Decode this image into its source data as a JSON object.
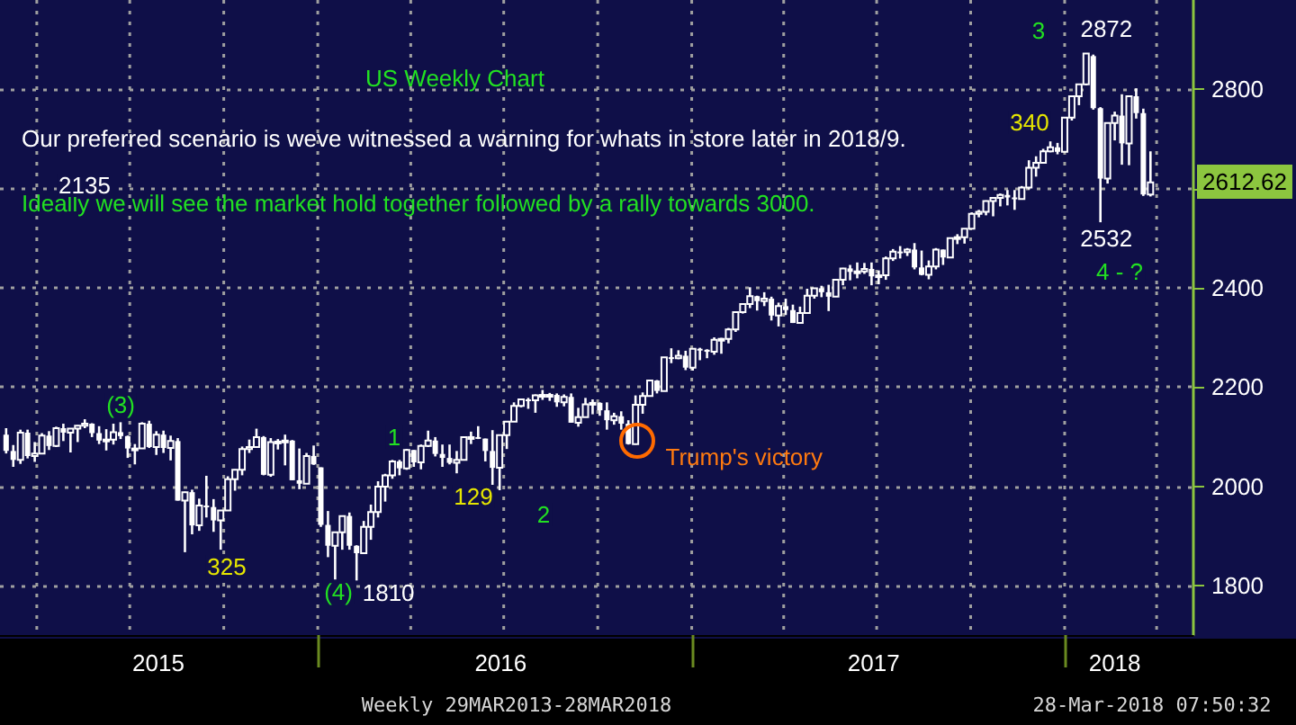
{
  "chart_data": {
    "type": "candlestick",
    "title": "US Weekly Chart",
    "color": "#ffffff",
    "grid": true,
    "xlim": [
      "2015-02-24",
      "2018-05-07"
    ],
    "ylim": [
      1700,
      2980
    ],
    "xticks": [
      {
        "value": "2015-04-01",
        "label": null
      },
      {
        "value": "2015-07-01",
        "label": null
      },
      {
        "value": "2015-07-29",
        "label": "2015"
      },
      {
        "value": "2015-10-01",
        "label": null
      },
      {
        "value": "2016-01-01",
        "label": null
      },
      {
        "value": "2016-04-01",
        "label": null
      },
      {
        "value": "2016-06-28",
        "label": "2016"
      },
      {
        "value": "2016-07-01",
        "label": null
      },
      {
        "value": "2016-10-01",
        "label": null
      },
      {
        "value": "2017-01-01",
        "label": null
      },
      {
        "value": "2017-04-01",
        "label": null
      },
      {
        "value": "2017-06-28",
        "label": "2017"
      },
      {
        "value": "2017-07-01",
        "label": null
      },
      {
        "value": "2017-10-01",
        "label": null
      },
      {
        "value": "2018-01-01",
        "label": null
      },
      {
        "value": "2018-02-19",
        "label": "2018"
      },
      {
        "value": "2018-04-01",
        "label": null
      }
    ],
    "yticks": [
      1800,
      2000,
      2200,
      2400,
      {
        "value": 2600,
        "label": null
      },
      2800
    ],
    "annotations": [
      "Our preferred scenario is weve witnessed a warning for whats in store later in 2018/9.",
      "Ideally we will see the market hold together followed by a rally towards 3000.",
      "2135",
      "(3)",
      "325",
      "(4)",
      {
        "text": "1810",
        "x": "2016-02-11",
        "y": 1810
      },
      "1",
      "129",
      "2",
      {
        "text": "Trump's victory",
        "x": "2016-11-04",
        "y": 2084
      },
      "3",
      {
        "text": "2872",
        "x": "2018-01-26",
        "y": 2872
      },
      "340",
      {
        "text": "2532",
        "x": "2018-02-09",
        "y": 2532
      },
      "4 - ?",
      "2612.62",
      "Weekly 29MAR2013-28MAR2018",
      "28-Mar-2018 07:50:32"
    ],
    "x": [
      "2015-03-02",
      "2015-03-09",
      "2015-03-16",
      "2015-03-23",
      "2015-03-30",
      "2015-04-06",
      "2015-04-13",
      "2015-04-20",
      "2015-04-27",
      "2015-05-04",
      "2015-05-11",
      "2015-05-18",
      "2015-05-25",
      "2015-06-01",
      "2015-06-08",
      "2015-06-15",
      "2015-06-22",
      "2015-06-29",
      "2015-07-06",
      "2015-07-13",
      "2015-07-20",
      "2015-07-27",
      "2015-08-03",
      "2015-08-10",
      "2015-08-17",
      "2015-08-24",
      "2015-08-31",
      "2015-09-07",
      "2015-09-14",
      "2015-09-21",
      "2015-09-28",
      "2015-10-05",
      "2015-10-12",
      "2015-10-19",
      "2015-10-26",
      "2015-11-02",
      "2015-11-09",
      "2015-11-16",
      "2015-11-23",
      "2015-11-30",
      "2015-12-07",
      "2015-12-14",
      "2015-12-21",
      "2015-12-28",
      "2016-01-04",
      "2016-01-11",
      "2016-01-18",
      "2016-01-25",
      "2016-02-01",
      "2016-02-08",
      "2016-02-15",
      "2016-02-22",
      "2016-02-29",
      "2016-03-07",
      "2016-03-14",
      "2016-03-21",
      "2016-03-28",
      "2016-04-04",
      "2016-04-11",
      "2016-04-18",
      "2016-04-25",
      "2016-05-02",
      "2016-05-09",
      "2016-05-16",
      "2016-05-23",
      "2016-05-30",
      "2016-06-06",
      "2016-06-13",
      "2016-06-20",
      "2016-06-27",
      "2016-07-04",
      "2016-07-11",
      "2016-07-18",
      "2016-07-25",
      "2016-08-01",
      "2016-08-08",
      "2016-08-15",
      "2016-08-22",
      "2016-08-29",
      "2016-09-05",
      "2016-09-12",
      "2016-09-19",
      "2016-09-26",
      "2016-10-03",
      "2016-10-10",
      "2016-10-17",
      "2016-10-24",
      "2016-10-31",
      "2016-11-07",
      "2016-11-14",
      "2016-11-21",
      "2016-11-28",
      "2016-12-05",
      "2016-12-12",
      "2016-12-19",
      "2016-12-26",
      "2017-01-02",
      "2017-01-09",
      "2017-01-16",
      "2017-01-23",
      "2017-01-30",
      "2017-02-06",
      "2017-02-13",
      "2017-02-20",
      "2017-02-27",
      "2017-03-06",
      "2017-03-13",
      "2017-03-20",
      "2017-03-27",
      "2017-04-03",
      "2017-04-10",
      "2017-04-17",
      "2017-04-24",
      "2017-05-01",
      "2017-05-08",
      "2017-05-15",
      "2017-05-22",
      "2017-05-29",
      "2017-06-05",
      "2017-06-12",
      "2017-06-19",
      "2017-06-26",
      "2017-07-03",
      "2017-07-10",
      "2017-07-17",
      "2017-07-24",
      "2017-07-31",
      "2017-08-07",
      "2017-08-14",
      "2017-08-21",
      "2017-08-28",
      "2017-09-04",
      "2017-09-11",
      "2017-09-18",
      "2017-09-25",
      "2017-10-02",
      "2017-10-09",
      "2017-10-16",
      "2017-10-23",
      "2017-10-30",
      "2017-11-06",
      "2017-11-13",
      "2017-11-20",
      "2017-11-27",
      "2017-12-04",
      "2017-12-11",
      "2017-12-18",
      "2017-12-25",
      "2018-01-01",
      "2018-01-08",
      "2018-01-15",
      "2018-01-22",
      "2018-01-29",
      "2018-02-05",
      "2018-02-12",
      "2018-02-19",
      "2018-02-26",
      "2018-03-05",
      "2018-03-12",
      "2018-03-19",
      "2018-03-26"
    ],
    "ohlc": [
      [
        2104,
        2117,
        2066,
        2071
      ],
      [
        2071,
        2083,
        2039,
        2053
      ],
      [
        2053,
        2114,
        2045,
        2108
      ],
      [
        2108,
        2114,
        2056,
        2061
      ],
      [
        2061,
        2089,
        2049,
        2066
      ],
      [
        2066,
        2107,
        2065,
        2102
      ],
      [
        2102,
        2111,
        2073,
        2081
      ],
      [
        2081,
        2120,
        2079,
        2117
      ],
      [
        2117,
        2126,
        2091,
        2108
      ],
      [
        2108,
        2117,
        2068,
        2116
      ],
      [
        2116,
        2123,
        2089,
        2122
      ],
      [
        2122,
        2135,
        2117,
        2126
      ],
      [
        2126,
        2127,
        2099,
        2107
      ],
      [
        2107,
        2121,
        2085,
        2092
      ],
      [
        2092,
        2115,
        2072,
        2094
      ],
      [
        2094,
        2126,
        2084,
        2109
      ],
      [
        2109,
        2129,
        2095,
        2101
      ],
      [
        2101,
        2102,
        2057,
        2076
      ],
      [
        2076,
        2085,
        2044,
        2076
      ],
      [
        2076,
        2129,
        2076,
        2126
      ],
      [
        2126,
        2132,
        2077,
        2079
      ],
      [
        2079,
        2111,
        2063,
        2104
      ],
      [
        2104,
        2112,
        2067,
        2077
      ],
      [
        2077,
        2102,
        2052,
        2091
      ],
      [
        2091,
        2097,
        1971,
        1971
      ],
      [
        1971,
        1989,
        1867,
        1988
      ],
      [
        1988,
        1993,
        1903,
        1921
      ],
      [
        1921,
        1975,
        1910,
        1961
      ],
      [
        1961,
        2021,
        1937,
        1958
      ],
      [
        1958,
        1974,
        1908,
        1931
      ],
      [
        1931,
        1952,
        1872,
        1951
      ],
      [
        1951,
        2020,
        1951,
        2014
      ],
      [
        2014,
        2034,
        1991,
        2033
      ],
      [
        2033,
        2080,
        2022,
        2075
      ],
      [
        2075,
        2094,
        2067,
        2079
      ],
      [
        2079,
        2116,
        2079,
        2099
      ],
      [
        2099,
        2101,
        2022,
        2023
      ],
      [
        2023,
        2097,
        2019,
        2089
      ],
      [
        2089,
        2095,
        2074,
        2090
      ],
      [
        2090,
        2104,
        2042,
        2092
      ],
      [
        2092,
        2093,
        2012,
        2012
      ],
      [
        2012,
        2076,
        1994,
        2005
      ],
      [
        2005,
        2067,
        2005,
        2061
      ],
      [
        2061,
        2082,
        2043,
        2044
      ],
      [
        2038,
        2038,
        1918,
        1922
      ],
      [
        1922,
        1950,
        1857,
        1880
      ],
      [
        1880,
        1908,
        1812,
        1907
      ],
      [
        1907,
        1940,
        1872,
        1940
      ],
      [
        1940,
        1947,
        1872,
        1880
      ],
      [
        1880,
        1881,
        1810,
        1865
      ],
      [
        1865,
        1930,
        1865,
        1918
      ],
      [
        1918,
        1963,
        1892,
        1948
      ],
      [
        1948,
        2010,
        1937,
        1999
      ],
      [
        1999,
        2025,
        1969,
        2022
      ],
      [
        2022,
        2053,
        2015,
        2050
      ],
      [
        2050,
        2053,
        2022,
        2036
      ],
      [
        2036,
        2075,
        2033,
        2073
      ],
      [
        2073,
        2073,
        2039,
        2048
      ],
      [
        2048,
        2084,
        2034,
        2081
      ],
      [
        2081,
        2112,
        2079,
        2092
      ],
      [
        2092,
        2099,
        2060,
        2065
      ],
      [
        2065,
        2084,
        2039,
        2057
      ],
      [
        2057,
        2084,
        2044,
        2047
      ],
      [
        2047,
        2071,
        2026,
        2053
      ],
      [
        2053,
        2100,
        2053,
        2099
      ],
      [
        2099,
        2110,
        2085,
        2099
      ],
      [
        2099,
        2121,
        2095,
        2096
      ],
      [
        2096,
        2096,
        2050,
        2071
      ],
      [
        2071,
        2113,
        1992,
        2037
      ],
      [
        2037,
        2103,
        1992,
        2103
      ],
      [
        2103,
        2131,
        2075,
        2130
      ],
      [
        2130,
        2169,
        2130,
        2162
      ],
      [
        2162,
        2175,
        2159,
        2175
      ],
      [
        2175,
        2178,
        2156,
        2173
      ],
      [
        2173,
        2185,
        2148,
        2183
      ],
      [
        2183,
        2194,
        2174,
        2184
      ],
      [
        2184,
        2188,
        2172,
        2184
      ],
      [
        2184,
        2187,
        2160,
        2169
      ],
      [
        2169,
        2185,
        2161,
        2180
      ],
      [
        2180,
        2187,
        2128,
        2128
      ],
      [
        2128,
        2158,
        2120,
        2139
      ],
      [
        2139,
        2178,
        2139,
        2165
      ],
      [
        2165,
        2175,
        2145,
        2168
      ],
      [
        2168,
        2169,
        2142,
        2153
      ],
      [
        2153,
        2169,
        2114,
        2133
      ],
      [
        2133,
        2148,
        2124,
        2141
      ],
      [
        2141,
        2151,
        2114,
        2126
      ],
      [
        2126,
        2133,
        2084,
        2085
      ],
      [
        2085,
        2183,
        2084,
        2164
      ],
      [
        2164,
        2189,
        2146,
        2182
      ],
      [
        2182,
        2214,
        2182,
        2213
      ],
      [
        2213,
        2214,
        2187,
        2192
      ],
      [
        2192,
        2260,
        2192,
        2260
      ],
      [
        2260,
        2278,
        2248,
        2258
      ],
      [
        2258,
        2274,
        2256,
        2263
      ],
      [
        2263,
        2273,
        2234,
        2239
      ],
      [
        2239,
        2278,
        2233,
        2277
      ],
      [
        2277,
        2279,
        2254,
        2275
      ],
      [
        2275,
        2276,
        2258,
        2271
      ],
      [
        2271,
        2300,
        2265,
        2295
      ],
      [
        2295,
        2299,
        2267,
        2297
      ],
      [
        2297,
        2319,
        2288,
        2316
      ],
      [
        2316,
        2352,
        2311,
        2351
      ],
      [
        2351,
        2368,
        2348,
        2367
      ],
      [
        2367,
        2401,
        2359,
        2383
      ],
      [
        2383,
        2384,
        2354,
        2373
      ],
      [
        2373,
        2391,
        2363,
        2378
      ],
      [
        2378,
        2382,
        2334,
        2344
      ],
      [
        2344,
        2370,
        2322,
        2363
      ],
      [
        2363,
        2378,
        2345,
        2355
      ],
      [
        2355,
        2366,
        2329,
        2329
      ],
      [
        2329,
        2362,
        2328,
        2349
      ],
      [
        2349,
        2398,
        2349,
        2384
      ],
      [
        2384,
        2399,
        2378,
        2399
      ],
      [
        2399,
        2404,
        2381,
        2391
      ],
      [
        2391,
        2406,
        2353,
        2382
      ],
      [
        2382,
        2418,
        2382,
        2416
      ],
      [
        2416,
        2440,
        2405,
        2439
      ],
      [
        2439,
        2446,
        2415,
        2432
      ],
      [
        2432,
        2451,
        2419,
        2433
      ],
      [
        2433,
        2450,
        2428,
        2438
      ],
      [
        2438,
        2451,
        2405,
        2423
      ],
      [
        2423,
        2435,
        2407,
        2425
      ],
      [
        2425,
        2463,
        2416,
        2459
      ],
      [
        2459,
        2478,
        2454,
        2473
      ],
      [
        2473,
        2484,
        2459,
        2472
      ],
      [
        2472,
        2480,
        2464,
        2477
      ],
      [
        2477,
        2490,
        2437,
        2441
      ],
      [
        2441,
        2475,
        2425,
        2426
      ],
      [
        2426,
        2455,
        2417,
        2443
      ],
      [
        2443,
        2480,
        2437,
        2477
      ],
      [
        2477,
        2477,
        2446,
        2461
      ],
      [
        2461,
        2500,
        2461,
        2500
      ],
      [
        2500,
        2508,
        2488,
        2502
      ],
      [
        2502,
        2519,
        2489,
        2519
      ],
      [
        2519,
        2552,
        2519,
        2549
      ],
      [
        2549,
        2557,
        2542,
        2553
      ],
      [
        2553,
        2576,
        2546,
        2575
      ],
      [
        2575,
        2582,
        2544,
        2581
      ],
      [
        2581,
        2590,
        2564,
        2587
      ],
      [
        2587,
        2597,
        2566,
        2582
      ],
      [
        2582,
        2597,
        2557,
        2579
      ],
      [
        2579,
        2605,
        2578,
        2602
      ],
      [
        2602,
        2657,
        2598,
        2642
      ],
      [
        2642,
        2665,
        2624,
        2652
      ],
      [
        2652,
        2680,
        2652,
        2675
      ],
      [
        2675,
        2695,
        2673,
        2683
      ],
      [
        2683,
        2692,
        2669,
        2674
      ],
      [
        2674,
        2743,
        2673,
        2743
      ],
      [
        2743,
        2787,
        2737,
        2786
      ],
      [
        2786,
        2810,
        2768,
        2810
      ],
      [
        2810,
        2872,
        2808,
        2872
      ],
      [
        2867,
        2870,
        2759,
        2762
      ],
      [
        2762,
        2764,
        2532,
        2620
      ],
      [
        2620,
        2733,
        2610,
        2732
      ],
      [
        2732,
        2755,
        2697,
        2747
      ],
      [
        2747,
        2790,
        2648,
        2691
      ],
      [
        2691,
        2787,
        2647,
        2786
      ],
      [
        2786,
        2802,
        2741,
        2752
      ],
      [
        2752,
        2761,
        2585,
        2588
      ],
      [
        2588,
        2675,
        2584,
        2612.62
      ]
    ]
  }
}
